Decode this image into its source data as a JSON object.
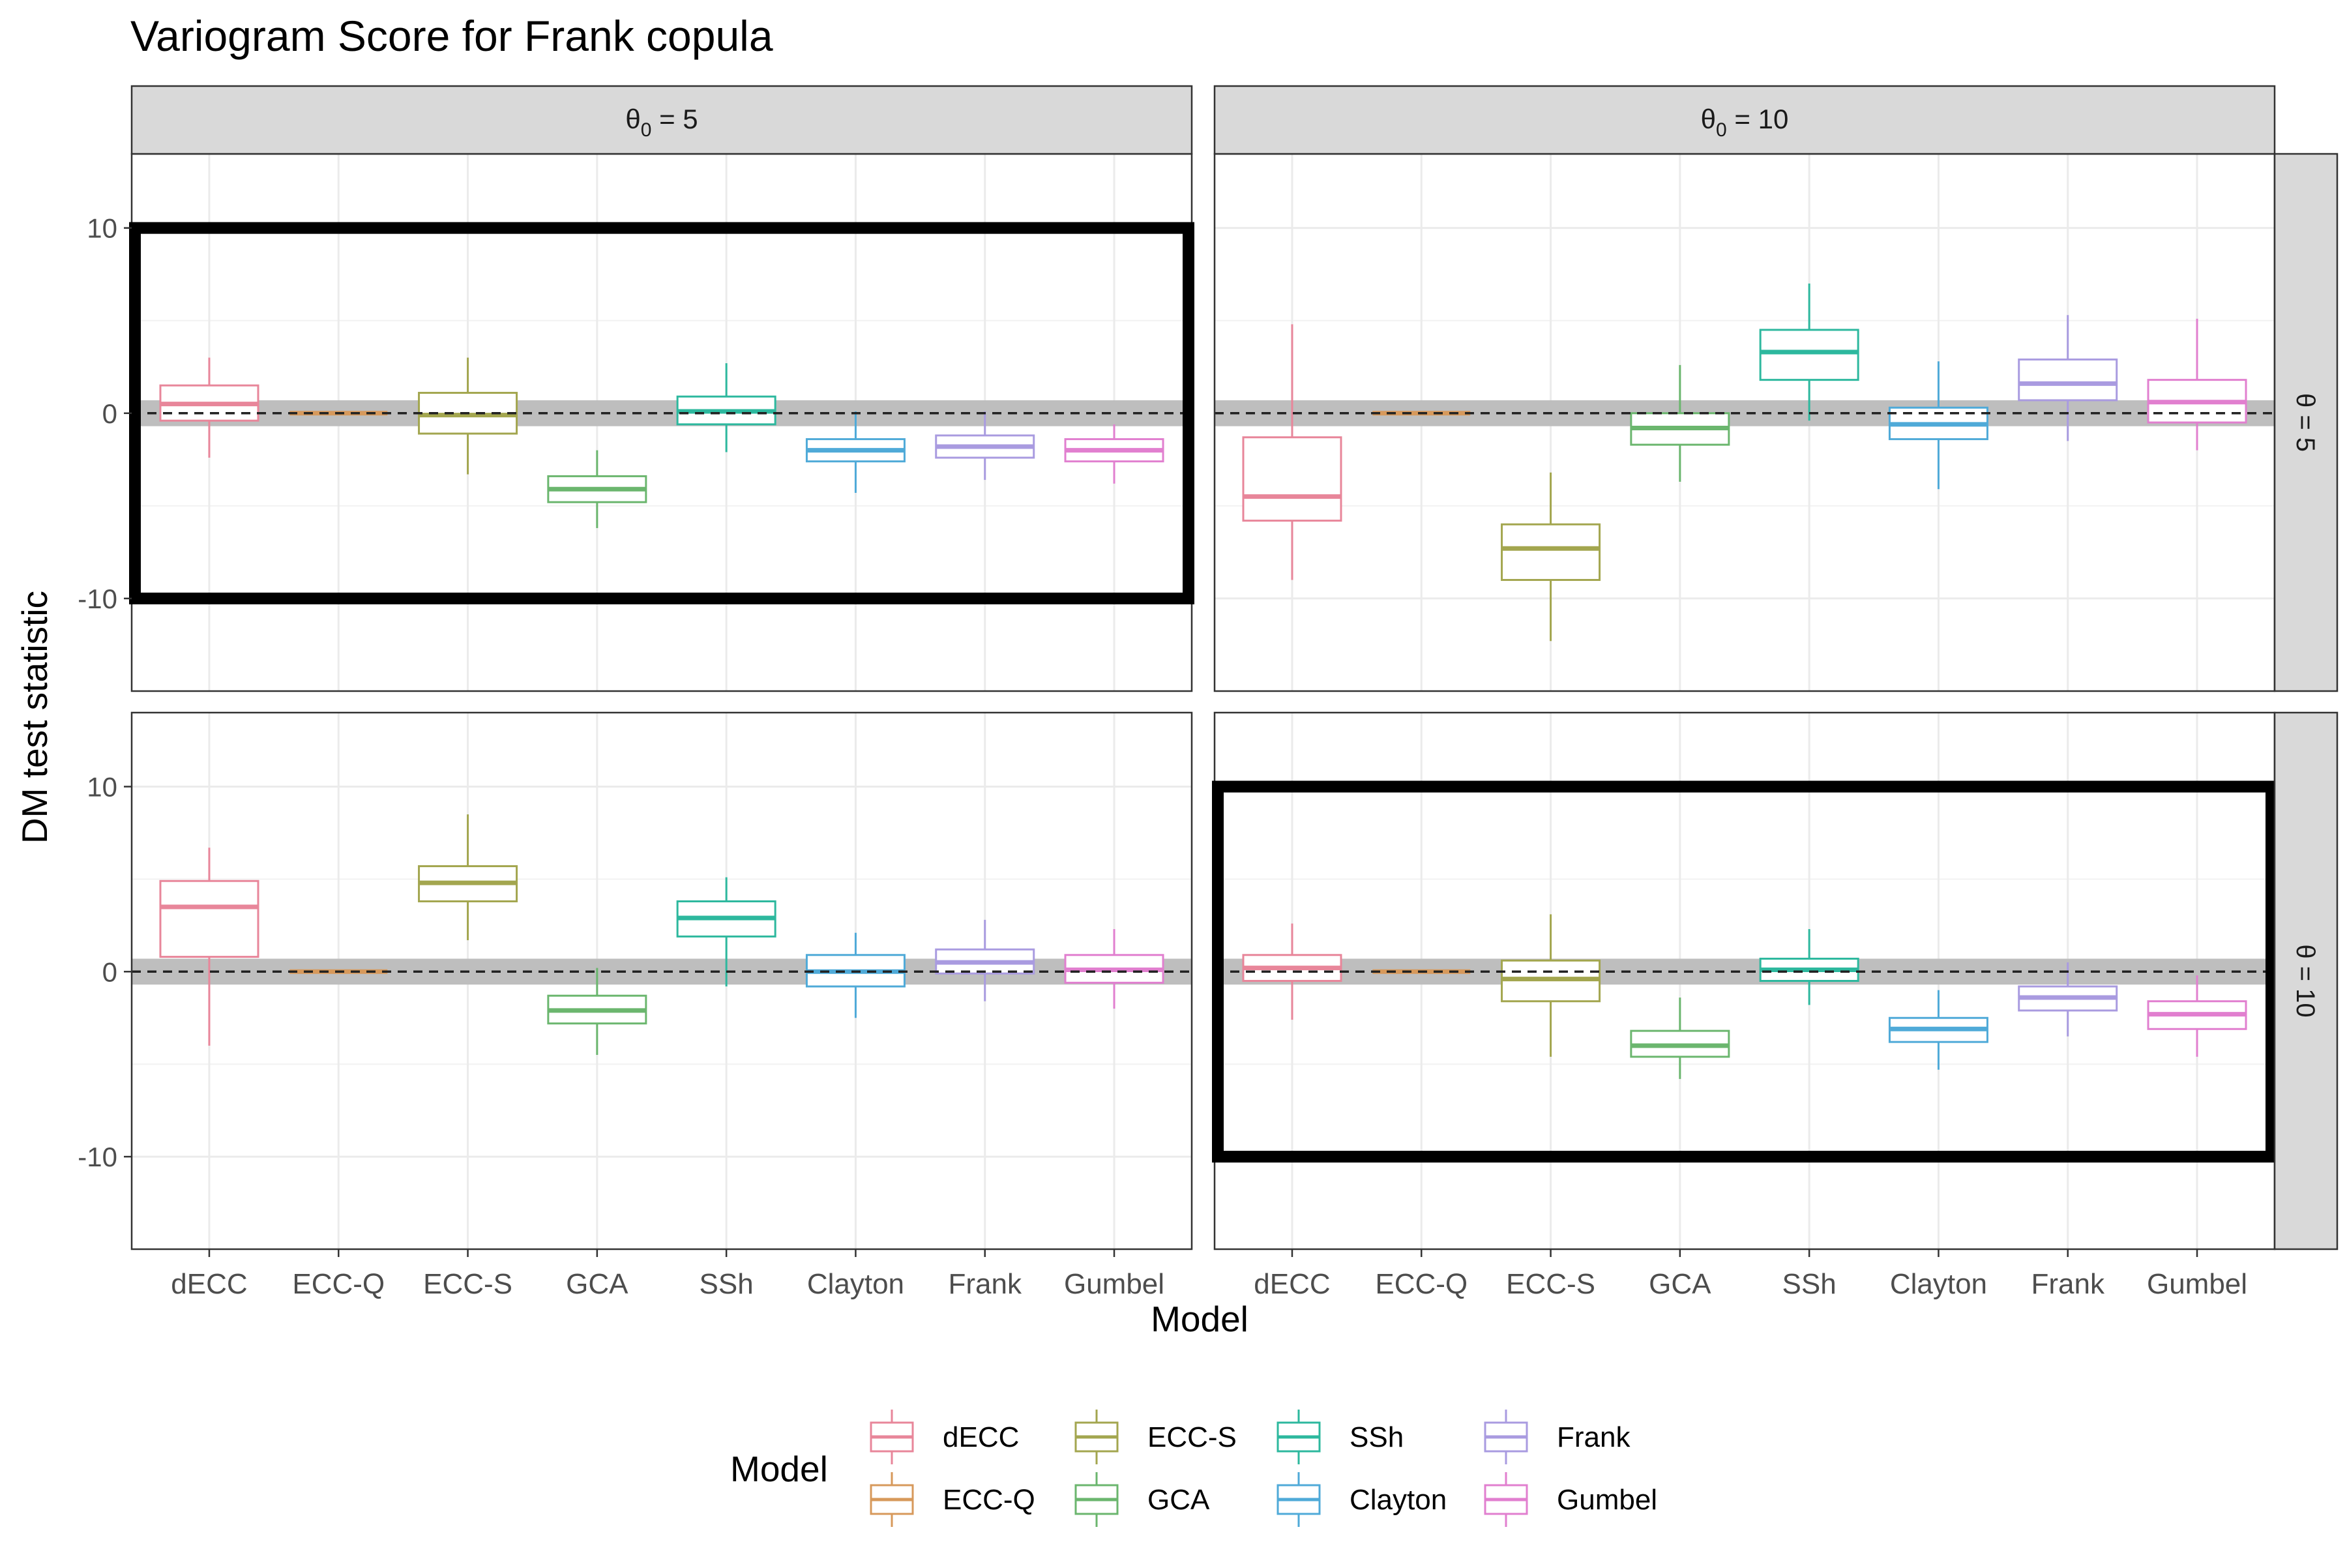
{
  "chart_data": {
    "type": "boxplot",
    "title": "Variogram Score for Frank copula",
    "xlabel": "Model",
    "ylabel": "DM test statistic",
    "ylim": [
      -15,
      14
    ],
    "yticks": [
      -10,
      0,
      10
    ],
    "reference_line": 0,
    "reference_band": [
      -0.7,
      0.7
    ],
    "grid": true,
    "legend": {
      "title": "Model",
      "position": "bottom",
      "entries": [
        "dECC",
        "ECC-Q",
        "ECC-S",
        "GCA",
        "SSh",
        "Clayton",
        "Frank",
        "Gumbel"
      ]
    },
    "categories": [
      "dECC",
      "ECC-Q",
      "ECC-S",
      "GCA",
      "SSh",
      "Clayton",
      "Frank",
      "Gumbel"
    ],
    "colors": {
      "dECC": "#E8869A",
      "ECC-Q": "#D7995B",
      "ECC-S": "#A3A64F",
      "GCA": "#6BB66E",
      "SSh": "#2DB89E",
      "Clayton": "#4FAAD8",
      "Frank": "#A99BE0",
      "Gumbel": "#E17FCF"
    },
    "col_strips": [
      {
        "base": "θ",
        "sub": "0",
        "rest": " = 5"
      },
      {
        "base": "θ",
        "sub": "0",
        "rest": " = 10"
      }
    ],
    "row_strips": [
      "θ = 5",
      "θ = 10"
    ],
    "panels": [
      {
        "row": 0,
        "col": 0,
        "highlight": true,
        "boxes": [
          {
            "model": "dECC",
            "lower_whisker": -2.4,
            "q1": -0.4,
            "median": 0.5,
            "q3": 1.5,
            "upper_whisker": 3.0
          },
          {
            "model": "ECC-Q",
            "lower_whisker": 0,
            "q1": 0,
            "median": 0,
            "q3": 0,
            "upper_whisker": 0
          },
          {
            "model": "ECC-S",
            "lower_whisker": -3.3,
            "q1": -1.1,
            "median": -0.1,
            "q3": 1.1,
            "upper_whisker": 3.0
          },
          {
            "model": "GCA",
            "lower_whisker": -6.2,
            "q1": -4.8,
            "median": -4.1,
            "q3": -3.4,
            "upper_whisker": -2.0
          },
          {
            "model": "SSh",
            "lower_whisker": -2.1,
            "q1": -0.6,
            "median": 0.1,
            "q3": 0.9,
            "upper_whisker": 2.7
          },
          {
            "model": "Clayton",
            "lower_whisker": -4.3,
            "q1": -2.6,
            "median": -2.0,
            "q3": -1.4,
            "upper_whisker": 0.1
          },
          {
            "model": "Frank",
            "lower_whisker": -3.6,
            "q1": -2.4,
            "median": -1.8,
            "q3": -1.2,
            "upper_whisker": 0.1
          },
          {
            "model": "Gumbel",
            "lower_whisker": -3.8,
            "q1": -2.6,
            "median": -2.0,
            "q3": -1.4,
            "upper_whisker": -0.6
          }
        ]
      },
      {
        "row": 0,
        "col": 1,
        "highlight": false,
        "boxes": [
          {
            "model": "dECC",
            "lower_whisker": -9.0,
            "q1": -5.8,
            "median": -4.5,
            "q3": -1.3,
            "upper_whisker": 4.8
          },
          {
            "model": "ECC-Q",
            "lower_whisker": 0,
            "q1": 0,
            "median": 0,
            "q3": 0,
            "upper_whisker": 0
          },
          {
            "model": "ECC-S",
            "lower_whisker": -12.3,
            "q1": -9.0,
            "median": -7.3,
            "q3": -6.0,
            "upper_whisker": -3.2
          },
          {
            "model": "GCA",
            "lower_whisker": -3.7,
            "q1": -1.7,
            "median": -0.8,
            "q3": 0.0,
            "upper_whisker": 2.6
          },
          {
            "model": "SSh",
            "lower_whisker": -0.4,
            "q1": 1.8,
            "median": 3.3,
            "q3": 4.5,
            "upper_whisker": 7.0
          },
          {
            "model": "Clayton",
            "lower_whisker": -4.1,
            "q1": -1.4,
            "median": -0.6,
            "q3": 0.3,
            "upper_whisker": 2.8
          },
          {
            "model": "Frank",
            "lower_whisker": -1.5,
            "q1": 0.7,
            "median": 1.6,
            "q3": 2.9,
            "upper_whisker": 5.3
          },
          {
            "model": "Gumbel",
            "lower_whisker": -2.0,
            "q1": -0.5,
            "median": 0.6,
            "q3": 1.8,
            "upper_whisker": 5.1
          }
        ]
      },
      {
        "row": 1,
        "col": 0,
        "highlight": false,
        "boxes": [
          {
            "model": "dECC",
            "lower_whisker": -4.0,
            "q1": 0.8,
            "median": 3.5,
            "q3": 4.9,
            "upper_whisker": 6.7
          },
          {
            "model": "ECC-Q",
            "lower_whisker": 0,
            "q1": 0,
            "median": 0,
            "q3": 0,
            "upper_whisker": 0
          },
          {
            "model": "ECC-S",
            "lower_whisker": 1.7,
            "q1": 3.8,
            "median": 4.8,
            "q3": 5.7,
            "upper_whisker": 8.5
          },
          {
            "model": "GCA",
            "lower_whisker": -4.5,
            "q1": -2.8,
            "median": -2.1,
            "q3": -1.3,
            "upper_whisker": 0.2
          },
          {
            "model": "SSh",
            "lower_whisker": -0.8,
            "q1": 1.9,
            "median": 2.9,
            "q3": 3.8,
            "upper_whisker": 5.1
          },
          {
            "model": "Clayton",
            "lower_whisker": -2.5,
            "q1": -0.8,
            "median": 0.0,
            "q3": 0.9,
            "upper_whisker": 2.1
          },
          {
            "model": "Frank",
            "lower_whisker": -1.6,
            "q1": -0.1,
            "median": 0.5,
            "q3": 1.2,
            "upper_whisker": 2.8
          },
          {
            "model": "Gumbel",
            "lower_whisker": -2.0,
            "q1": -0.6,
            "median": 0.1,
            "q3": 0.9,
            "upper_whisker": 2.3
          }
        ]
      },
      {
        "row": 1,
        "col": 1,
        "highlight": true,
        "boxes": [
          {
            "model": "dECC",
            "lower_whisker": -2.6,
            "q1": -0.5,
            "median": 0.2,
            "q3": 0.9,
            "upper_whisker": 2.6
          },
          {
            "model": "ECC-Q",
            "lower_whisker": 0,
            "q1": 0,
            "median": 0,
            "q3": 0,
            "upper_whisker": 0
          },
          {
            "model": "ECC-S",
            "lower_whisker": -4.6,
            "q1": -1.6,
            "median": -0.4,
            "q3": 0.6,
            "upper_whisker": 3.1
          },
          {
            "model": "GCA",
            "lower_whisker": -5.8,
            "q1": -4.6,
            "median": -4.0,
            "q3": -3.2,
            "upper_whisker": -1.4
          },
          {
            "model": "SSh",
            "lower_whisker": -1.8,
            "q1": -0.5,
            "median": 0.1,
            "q3": 0.7,
            "upper_whisker": 2.3
          },
          {
            "model": "Clayton",
            "lower_whisker": -5.3,
            "q1": -3.8,
            "median": -3.1,
            "q3": -2.5,
            "upper_whisker": -1.0
          },
          {
            "model": "Frank",
            "lower_whisker": -3.5,
            "q1": -2.1,
            "median": -1.4,
            "q3": -0.8,
            "upper_whisker": 0.5
          },
          {
            "model": "Gumbel",
            "lower_whisker": -4.6,
            "q1": -3.1,
            "median": -2.3,
            "q3": -1.6,
            "upper_whisker": -0.2
          }
        ]
      }
    ]
  }
}
